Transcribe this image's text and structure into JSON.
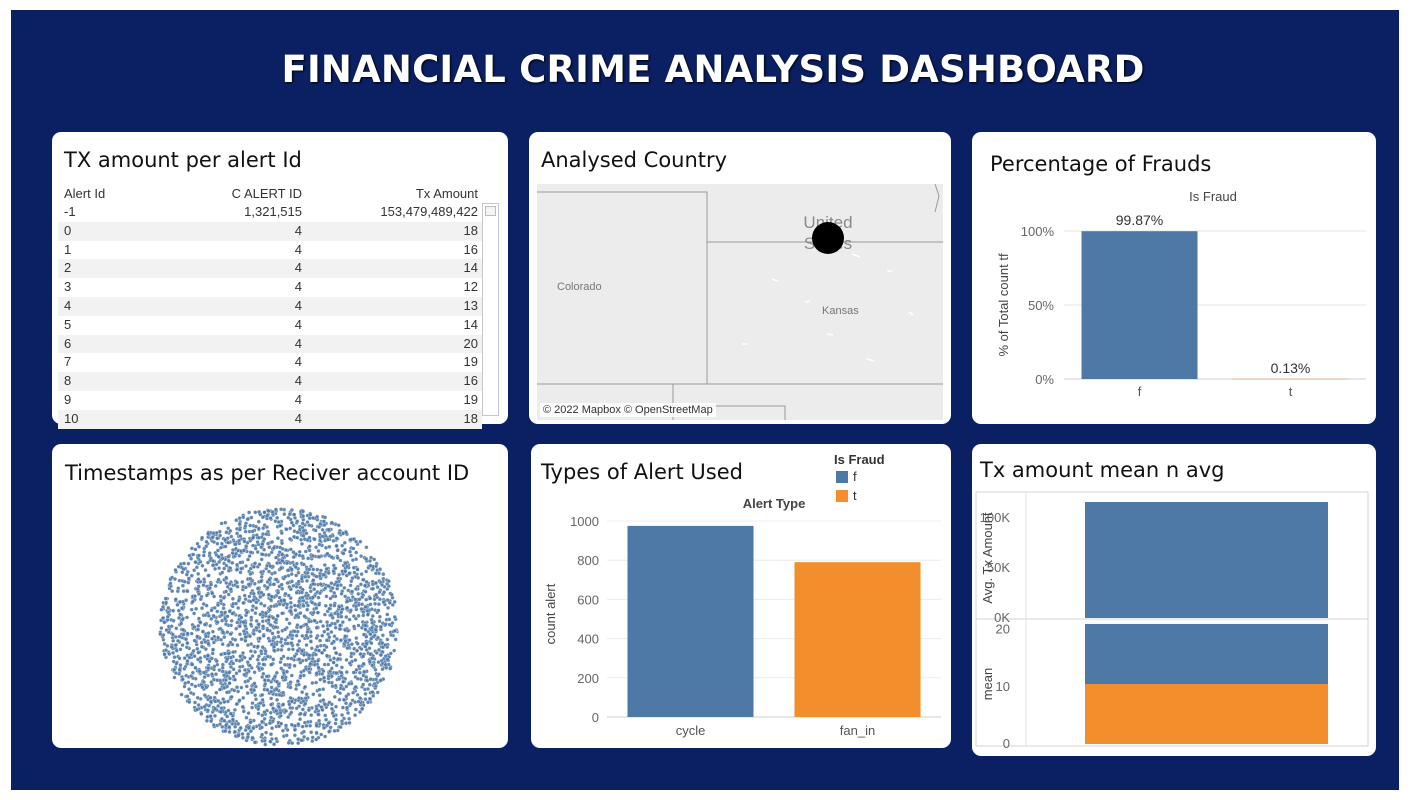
{
  "dashboard": {
    "title": "FINANCIAL CRIME ANALYSIS DASHBOARD"
  },
  "table_panel": {
    "title": "TX amount per alert Id",
    "columns": [
      "Alert Id",
      "C ALERT ID",
      "Tx Amount"
    ],
    "rows": [
      [
        "-1",
        "1,321,515",
        "153,479,489,422"
      ],
      [
        "0",
        "4",
        "18"
      ],
      [
        "1",
        "4",
        "16"
      ],
      [
        "2",
        "4",
        "14"
      ],
      [
        "3",
        "4",
        "12"
      ],
      [
        "4",
        "4",
        "13"
      ],
      [
        "5",
        "4",
        "14"
      ],
      [
        "6",
        "4",
        "20"
      ],
      [
        "7",
        "4",
        "19"
      ],
      [
        "8",
        "4",
        "16"
      ],
      [
        "9",
        "4",
        "19"
      ],
      [
        "10",
        "4",
        "18"
      ]
    ]
  },
  "map_panel": {
    "title": "Analysed Country",
    "labels": {
      "country": "United States",
      "state1": "Colorado",
      "state2": "Kansas"
    },
    "credit": "© 2022 Mapbox © OpenStreetMap"
  },
  "scatter_panel": {
    "title": "Timestamps as per Reciver account ID"
  },
  "colors": {
    "f": "#4e79a7",
    "t": "#f28e2b",
    "frame": "#0b1f63"
  },
  "chart_data": [
    {
      "id": "fraud-percentage",
      "type": "bar",
      "title": "Percentage of Frauds",
      "header": "Is Fraud",
      "categories": [
        "f",
        "t"
      ],
      "values": [
        99.87,
        0.13
      ],
      "value_labels": [
        "99.87%",
        "0.13%"
      ],
      "ylabel": "% of Total count tf",
      "ylim": [
        0,
        100
      ],
      "yticks": [
        "0%",
        "50%",
        "100%"
      ],
      "grid": true
    },
    {
      "id": "alert-types",
      "type": "bar",
      "title": "Types of Alert Used",
      "header": "Alert Type",
      "categories": [
        "cycle",
        "fan_in"
      ],
      "values": [
        975,
        790
      ],
      "colors_by": [
        "f",
        "t"
      ],
      "ylabel": "count alert",
      "ylim": [
        0,
        1000
      ],
      "yticks": [
        "0",
        "200",
        "400",
        "600",
        "800",
        "1000"
      ],
      "legend": {
        "title": "Is Fraud",
        "items": [
          "f",
          "t"
        ],
        "placement": "top-right"
      },
      "grid": true
    },
    {
      "id": "tx-mean-avg",
      "type": "bar",
      "title": "Tx amount mean n avg",
      "panes": [
        {
          "ylabel": "Avg. Tx Amount",
          "ylim": [
            0,
            120000
          ],
          "yticks": [
            "0K",
            "50K",
            "100K"
          ],
          "series": [
            {
              "color": "f",
              "values": [
                116000
              ]
            }
          ]
        },
        {
          "ylabel": "mean",
          "ylim": [
            0,
            21
          ],
          "yticks": [
            "0",
            "10",
            "20"
          ],
          "series": [
            {
              "color": "t",
              "values": [
                10.5
              ]
            },
            {
              "color": "f",
              "values": [
                10.5
              ]
            }
          ],
          "stacked": true
        }
      ]
    },
    {
      "id": "timestamps-scatter",
      "type": "scatter",
      "shape": "circular cluster",
      "point_color": "f"
    }
  ]
}
